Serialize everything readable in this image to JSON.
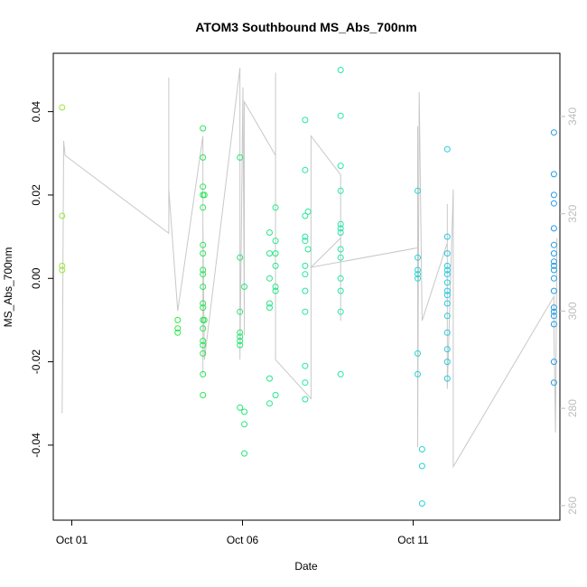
{
  "chart_data": {
    "type": "scatter",
    "title": "ATOM3 Southbound MS_Abs_700nm",
    "xlabel": "Date",
    "ylabel": "MS_Abs_700nm",
    "x_ticks": [
      "Oct 01",
      "Oct 06",
      "Oct 11"
    ],
    "y_ticks": [
      "-0.04",
      "-0.02",
      "0.00",
      "0.02",
      "0.04"
    ],
    "y2_ticks": [
      "260",
      "280",
      "300",
      "320",
      "340"
    ],
    "xlim": [
      "2016-09-30T18:00",
      "2016-10-15T00:00"
    ],
    "ylim": [
      -0.058,
      0.054
    ],
    "y2lim": [
      257,
      353
    ],
    "grid": false,
    "legend": "none",
    "colors": {
      "points_gradient": [
        "#a6e63c",
        "#33e633",
        "#26e680",
        "#26e6b3",
        "#26c7e6",
        "#2699e6"
      ],
      "altitude_line": "#c8c8c8"
    },
    "series": [
      {
        "values": [
          {
            "x": "2016-10-01T00:00",
            "y": 0.041
          },
          {
            "x": "2016-10-01T00:00",
            "y": 0.015
          },
          {
            "x": "2016-10-01T00:00",
            "y": 0.003
          },
          {
            "x": "2016-10-01T00:00",
            "y": 0.002
          },
          {
            "x": "2016-10-04T06:00",
            "y": -0.01
          },
          {
            "x": "2016-10-04T06:00",
            "y": -0.012
          },
          {
            "x": "2016-10-04T06:00",
            "y": -0.013
          },
          {
            "x": "2016-10-04T23:00",
            "y": 0.036
          },
          {
            "x": "2016-10-04T23:00",
            "y": 0.029
          },
          {
            "x": "2016-10-04T23:00",
            "y": 0.022
          },
          {
            "x": "2016-10-04T23:00",
            "y": 0.02
          },
          {
            "x": "2016-10-04T23:00",
            "y": 0.017
          },
          {
            "x": "2016-10-04T23:00",
            "y": 0.008
          },
          {
            "x": "2016-10-04T23:00",
            "y": 0.006
          },
          {
            "x": "2016-10-04T23:00",
            "y": 0.002
          },
          {
            "x": "2016-10-04T23:00",
            "y": 0.001
          },
          {
            "x": "2016-10-04T23:00",
            "y": -0.002
          },
          {
            "x": "2016-10-04T23:00",
            "y": -0.006
          },
          {
            "x": "2016-10-04T23:00",
            "y": -0.007
          },
          {
            "x": "2016-10-04T23:00",
            "y": -0.01
          },
          {
            "x": "2016-10-04T23:00",
            "y": -0.012
          },
          {
            "x": "2016-10-04T23:00",
            "y": -0.015
          },
          {
            "x": "2016-10-04T23:00",
            "y": -0.016
          },
          {
            "x": "2016-10-04T23:00",
            "y": -0.018
          },
          {
            "x": "2016-10-04T23:00",
            "y": -0.023
          },
          {
            "x": "2016-10-04T23:00",
            "y": -0.028
          },
          {
            "x": "2016-10-05T00:00",
            "y": 0.02
          },
          {
            "x": "2016-10-05T00:00",
            "y": -0.01
          },
          {
            "x": "2016-10-06T00:00",
            "y": 0.029
          },
          {
            "x": "2016-10-06T00:00",
            "y": 0.005
          },
          {
            "x": "2016-10-06T00:00",
            "y": -0.008
          },
          {
            "x": "2016-10-06T00:00",
            "y": -0.013
          },
          {
            "x": "2016-10-06T00:00",
            "y": -0.014
          },
          {
            "x": "2016-10-06T00:00",
            "y": -0.015
          },
          {
            "x": "2016-10-06T00:00",
            "y": -0.016
          },
          {
            "x": "2016-10-06T00:00",
            "y": -0.031
          },
          {
            "x": "2016-10-06T03:00",
            "y": -0.002
          },
          {
            "x": "2016-10-06T03:00",
            "y": -0.032
          },
          {
            "x": "2016-10-06T03:00",
            "y": -0.035
          },
          {
            "x": "2016-10-06T03:00",
            "y": -0.042
          },
          {
            "x": "2016-10-06T20:00",
            "y": 0.011
          },
          {
            "x": "2016-10-06T20:00",
            "y": 0.006
          },
          {
            "x": "2016-10-06T20:00",
            "y": 0.0
          },
          {
            "x": "2016-10-06T20:00",
            "y": -0.006
          },
          {
            "x": "2016-10-06T20:00",
            "y": -0.007
          },
          {
            "x": "2016-10-06T20:00",
            "y": -0.024
          },
          {
            "x": "2016-10-06T20:00",
            "y": -0.03
          },
          {
            "x": "2016-10-07T00:00",
            "y": 0.017
          },
          {
            "x": "2016-10-07T00:00",
            "y": 0.009
          },
          {
            "x": "2016-10-07T00:00",
            "y": 0.006
          },
          {
            "x": "2016-10-07T00:00",
            "y": 0.003
          },
          {
            "x": "2016-10-07T00:00",
            "y": -0.002
          },
          {
            "x": "2016-10-07T00:00",
            "y": -0.003
          },
          {
            "x": "2016-10-07T00:00",
            "y": -0.028
          },
          {
            "x": "2016-10-07T20:00",
            "y": 0.038
          },
          {
            "x": "2016-10-07T20:00",
            "y": 0.026
          },
          {
            "x": "2016-10-07T20:00",
            "y": 0.015
          },
          {
            "x": "2016-10-07T20:00",
            "y": 0.01
          },
          {
            "x": "2016-10-07T20:00",
            "y": 0.009
          },
          {
            "x": "2016-10-07T20:00",
            "y": 0.003
          },
          {
            "x": "2016-10-07T20:00",
            "y": 0.001
          },
          {
            "x": "2016-10-07T20:00",
            "y": -0.003
          },
          {
            "x": "2016-10-07T20:00",
            "y": -0.008
          },
          {
            "x": "2016-10-07T20:00",
            "y": -0.021
          },
          {
            "x": "2016-10-07T20:00",
            "y": -0.025
          },
          {
            "x": "2016-10-07T20:00",
            "y": -0.029
          },
          {
            "x": "2016-10-07T22:00",
            "y": 0.016
          },
          {
            "x": "2016-10-07T22:00",
            "y": 0.007
          },
          {
            "x": "2016-10-08T20:00",
            "y": 0.05
          },
          {
            "x": "2016-10-08T20:00",
            "y": 0.039
          },
          {
            "x": "2016-10-08T20:00",
            "y": 0.027
          },
          {
            "x": "2016-10-08T20:00",
            "y": 0.021
          },
          {
            "x": "2016-10-08T20:00",
            "y": 0.013
          },
          {
            "x": "2016-10-08T20:00",
            "y": 0.012
          },
          {
            "x": "2016-10-08T20:00",
            "y": 0.011
          },
          {
            "x": "2016-10-08T20:00",
            "y": 0.007
          },
          {
            "x": "2016-10-08T20:00",
            "y": 0.005
          },
          {
            "x": "2016-10-08T20:00",
            "y": 0.0
          },
          {
            "x": "2016-10-08T20:00",
            "y": -0.003
          },
          {
            "x": "2016-10-08T20:00",
            "y": -0.008
          },
          {
            "x": "2016-10-08T20:00",
            "y": -0.023
          },
          {
            "x": "2016-10-11T00:00",
            "y": 0.021
          },
          {
            "x": "2016-10-11T00:00",
            "y": 0.005
          },
          {
            "x": "2016-10-11T00:00",
            "y": 0.002
          },
          {
            "x": "2016-10-11T00:00",
            "y": 0.001
          },
          {
            "x": "2016-10-11T00:00",
            "y": 0.0
          },
          {
            "x": "2016-10-11T00:00",
            "y": -0.018
          },
          {
            "x": "2016-10-11T00:00",
            "y": -0.023
          },
          {
            "x": "2016-10-11T03:00",
            "y": -0.041
          },
          {
            "x": "2016-10-11T03:00",
            "y": -0.045
          },
          {
            "x": "2016-10-11T03:00",
            "y": -0.054
          },
          {
            "x": "2016-10-11T20:00",
            "y": 0.031
          },
          {
            "x": "2016-10-11T20:00",
            "y": 0.01
          },
          {
            "x": "2016-10-11T20:00",
            "y": 0.006
          },
          {
            "x": "2016-10-11T20:00",
            "y": 0.003
          },
          {
            "x": "2016-10-11T20:00",
            "y": 0.002
          },
          {
            "x": "2016-10-11T20:00",
            "y": 0.001
          },
          {
            "x": "2016-10-11T20:00",
            "y": -0.001
          },
          {
            "x": "2016-10-11T20:00",
            "y": -0.003
          },
          {
            "x": "2016-10-11T20:00",
            "y": -0.004
          },
          {
            "x": "2016-10-11T20:00",
            "y": -0.006
          },
          {
            "x": "2016-10-11T20:00",
            "y": -0.009
          },
          {
            "x": "2016-10-11T20:00",
            "y": -0.013
          },
          {
            "x": "2016-10-11T20:00",
            "y": -0.017
          },
          {
            "x": "2016-10-11T20:00",
            "y": -0.02
          },
          {
            "x": "2016-10-11T20:00",
            "y": -0.024
          },
          {
            "x": "2016-10-14T20:00",
            "y": 0.035
          },
          {
            "x": "2016-10-14T20:00",
            "y": 0.025
          },
          {
            "x": "2016-10-14T20:00",
            "y": 0.02
          },
          {
            "x": "2016-10-14T20:00",
            "y": 0.018
          },
          {
            "x": "2016-10-14T20:00",
            "y": 0.012
          },
          {
            "x": "2016-10-14T20:00",
            "y": 0.008
          },
          {
            "x": "2016-10-14T20:00",
            "y": 0.006
          },
          {
            "x": "2016-10-14T20:00",
            "y": 0.004
          },
          {
            "x": "2016-10-14T20:00",
            "y": 0.003
          },
          {
            "x": "2016-10-14T20:00",
            "y": 0.002
          },
          {
            "x": "2016-10-14T20:00",
            "y": 0.0
          },
          {
            "x": "2016-10-14T20:00",
            "y": -0.003
          },
          {
            "x": "2016-10-14T20:00",
            "y": -0.007
          },
          {
            "x": "2016-10-14T20:00",
            "y": -0.008
          },
          {
            "x": "2016-10-14T20:00",
            "y": -0.009
          },
          {
            "x": "2016-10-14T20:00",
            "y": -0.011
          },
          {
            "x": "2016-10-14T20:00",
            "y": -0.02
          },
          {
            "x": "2016-10-14T20:00",
            "y": -0.025
          }
        ]
      },
      {
        "axis": "right",
        "values": [
          {
            "x": "2016-10-01T00:00",
            "y": 279
          },
          {
            "x": "2016-10-01T01:00",
            "y": 335
          },
          {
            "x": "2016-10-01T02:00",
            "y": 332
          },
          {
            "x": "2016-10-04T00:00",
            "y": 316
          },
          {
            "x": "2016-10-04T00:00",
            "y": 348
          },
          {
            "x": "2016-10-04T00:00",
            "y": 325
          },
          {
            "x": "2016-10-04T06:00",
            "y": 300
          },
          {
            "x": "2016-10-04T23:00",
            "y": 336
          },
          {
            "x": "2016-10-04T23:00",
            "y": 287
          },
          {
            "x": "2016-10-04T23:00",
            "y": 318
          },
          {
            "x": "2016-10-05T00:00",
            "y": 290
          },
          {
            "x": "2016-10-06T00:00",
            "y": 350
          },
          {
            "x": "2016-10-06T00:00",
            "y": 290
          },
          {
            "x": "2016-10-06T02:00",
            "y": 346
          },
          {
            "x": "2016-10-06T03:00",
            "y": 295
          },
          {
            "x": "2016-10-06T03:00",
            "y": 343
          },
          {
            "x": "2016-10-07T00:00",
            "y": 332
          },
          {
            "x": "2016-10-07T00:00",
            "y": 349
          },
          {
            "x": "2016-10-07T00:00",
            "y": 290
          },
          {
            "x": "2016-10-08T00:00",
            "y": 282
          },
          {
            "x": "2016-10-08T00:00",
            "y": 336
          },
          {
            "x": "2016-10-08T20:00",
            "y": 328
          },
          {
            "x": "2016-10-08T20:00",
            "y": 298
          },
          {
            "x": "2016-10-08T20:00",
            "y": 315
          },
          {
            "x": "2016-10-08T00:00",
            "y": 309
          },
          {
            "x": "2016-10-11T00:00",
            "y": 313
          },
          {
            "x": "2016-10-11T00:00",
            "y": 338
          },
          {
            "x": "2016-10-11T00:00",
            "y": 272
          },
          {
            "x": "2016-10-11T01:00",
            "y": 345
          },
          {
            "x": "2016-10-11T03:00",
            "y": 298
          },
          {
            "x": "2016-10-11T20:00",
            "y": 314
          },
          {
            "x": "2016-10-11T20:00",
            "y": 322
          },
          {
            "x": "2016-10-11T20:00",
            "y": 284
          },
          {
            "x": "2016-10-12T00:00",
            "y": 325
          },
          {
            "x": "2016-10-12T00:00",
            "y": 268
          },
          {
            "x": "2016-10-14T20:00",
            "y": 303
          },
          {
            "x": "2016-10-14T20:00",
            "y": 296
          },
          {
            "x": "2016-10-14T21:00",
            "y": 275
          },
          {
            "x": "2016-10-14T22:00",
            "y": 315
          }
        ]
      }
    ]
  }
}
